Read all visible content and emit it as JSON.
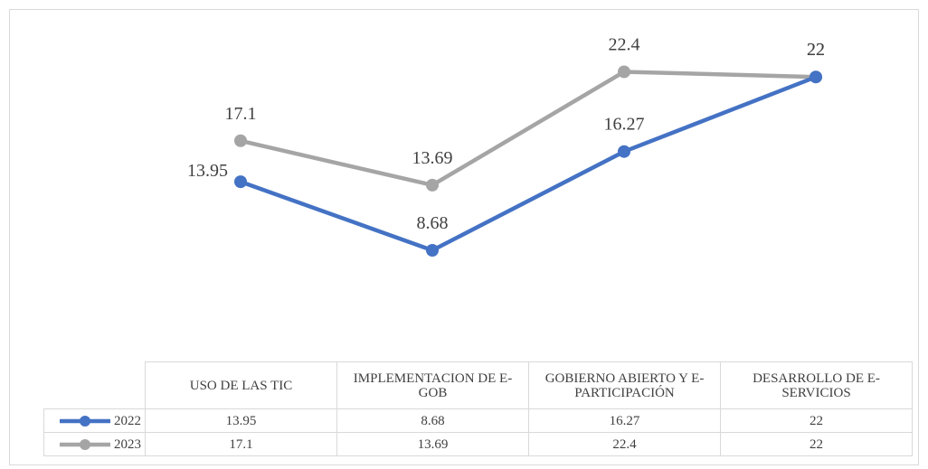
{
  "chart_data": {
    "type": "line",
    "categories": [
      "USO DE LAS TIC",
      "IMPLEMENTACION DE E-GOB",
      "GOBIERNO ABIERTO Y E-PARTICIPACIÓN",
      "DESARROLLO DE E-SERVICIOS"
    ],
    "series": [
      {
        "name": "2022",
        "color": "#4472c4",
        "values": [
          13.95,
          8.68,
          16.27,
          22
        ]
      },
      {
        "name": "2023",
        "color": "#a5a5a5",
        "values": [
          17.1,
          13.69,
          22.4,
          22
        ]
      }
    ],
    "ylim": [
      0,
      25
    ]
  }
}
